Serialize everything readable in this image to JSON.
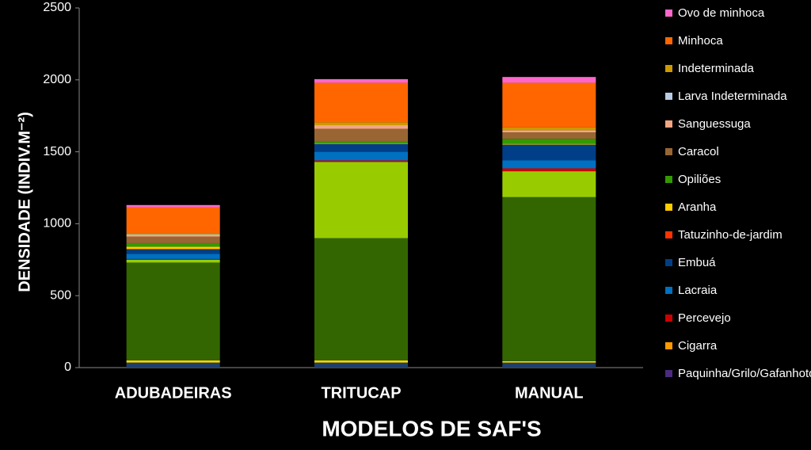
{
  "chart_data": {
    "type": "stacked_bar",
    "x_label": "MODELOS DE SAF'S",
    "y_label": "DENSIDADE  (INDIV.M⁻²)",
    "categories": [
      "ADUBADEIRAS",
      "TRITUCAP",
      "MANUAL"
    ],
    "ylim": [
      0,
      2500
    ],
    "yticks": [
      0,
      500,
      1000,
      1500,
      2000,
      2500
    ],
    "series": [
      {
        "name": null,
        "color": "#1f3f6e",
        "values": [
          35,
          35,
          35
        ]
      },
      {
        "name": null,
        "color": "#ffd700",
        "values": [
          15,
          15,
          10
        ]
      },
      {
        "name": null,
        "color": "#336600",
        "values": [
          680,
          850,
          1140
        ]
      },
      {
        "name": null,
        "color": "#99cc00",
        "values": [
          20,
          530,
          180
        ]
      },
      {
        "name": "Paquinha/Grilo/Gafanhoto",
        "color": "#4b2a7f",
        "values": [
          0,
          0,
          0
        ]
      },
      {
        "name": "Cigarra",
        "color": "#ff9900",
        "values": [
          0,
          0,
          0
        ]
      },
      {
        "name": "Percevejo",
        "color": "#cc0000",
        "values": [
          5,
          10,
          20
        ]
      },
      {
        "name": "Lacraia",
        "color": "#0070c0",
        "values": [
          35,
          60,
          55
        ]
      },
      {
        "name": "Embuá",
        "color": "#003f87",
        "values": [
          30,
          55,
          110
        ]
      },
      {
        "name": "Tatuzinho-de-jardim",
        "color": "#ff3300",
        "values": [
          5,
          0,
          0
        ]
      },
      {
        "name": "Aranha",
        "color": "#ffcc00",
        "values": [
          15,
          5,
          5
        ]
      },
      {
        "name": "Opiliões",
        "color": "#339900",
        "values": [
          25,
          15,
          35
        ]
      },
      {
        "name": "Caracol",
        "color": "#996633",
        "values": [
          45,
          85,
          45
        ]
      },
      {
        "name": "Sanguessuga",
        "color": "#f4a582",
        "values": [
          10,
          20,
          15
        ]
      },
      {
        "name": "Larva Indeterminada",
        "color": "#b8cce4",
        "values": [
          5,
          5,
          0
        ]
      },
      {
        "name": "Indeterminada",
        "color": "#cc9900",
        "values": [
          10,
          20,
          20
        ]
      },
      {
        "name": "Minhoca",
        "color": "#ff6600",
        "values": [
          180,
          275,
          310
        ]
      },
      {
        "name": "Ovo de minhoca",
        "color": "#ff66cc",
        "values": [
          15,
          25,
          40
        ]
      }
    ]
  }
}
